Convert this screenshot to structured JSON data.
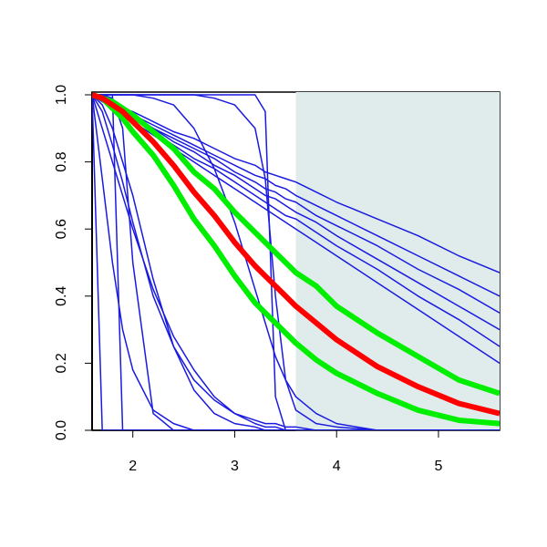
{
  "chart_data": {
    "type": "line",
    "x": [
      1.6,
      1.7,
      1.8,
      1.9,
      2.0,
      2.2,
      2.4,
      2.6,
      2.8,
      3.0,
      3.2,
      3.3,
      3.4,
      3.5,
      3.6,
      3.8,
      4.0,
      4.4,
      4.8,
      5.2,
      5.6
    ],
    "xlim": [
      1.6,
      5.6
    ],
    "ylim": [
      0,
      1
    ],
    "xticks": [
      2,
      3,
      4,
      5
    ],
    "yticks": [
      {
        "value": 0,
        "label": "0.0"
      },
      {
        "value": 0.2,
        "label": "0.2"
      },
      {
        "value": 0.4,
        "label": "0.4"
      },
      {
        "value": 0.6,
        "label": "0.6"
      },
      {
        "value": 0.8,
        "label": "0.8"
      },
      {
        "value": 1,
        "label": "1.0"
      }
    ],
    "shade": {
      "xlim": [
        3.6,
        5.6
      ],
      "color": "#e0eceb"
    },
    "series": [
      {
        "color": "#1a1ae0",
        "values": [
          1,
          0.99,
          0.97,
          0.96,
          0.95,
          0.92,
          0.89,
          0.87,
          0.84,
          0.81,
          0.79,
          0.77,
          0.76,
          0.75,
          0.74,
          0.71,
          0.68,
          0.63,
          0.58,
          0.52,
          0.47
        ]
      },
      {
        "color": "#1a1ae0",
        "values": [
          1,
          0.99,
          0.97,
          0.96,
          0.94,
          0.91,
          0.88,
          0.85,
          0.82,
          0.79,
          0.76,
          0.75,
          0.73,
          0.72,
          0.7,
          0.67,
          0.64,
          0.58,
          0.52,
          0.46,
          0.4
        ]
      },
      {
        "color": "#1a1ae0",
        "values": [
          1,
          0.98,
          0.97,
          0.95,
          0.94,
          0.9,
          0.87,
          0.84,
          0.81,
          0.77,
          0.74,
          0.72,
          0.71,
          0.69,
          0.68,
          0.64,
          0.61,
          0.55,
          0.48,
          0.42,
          0.35
        ]
      },
      {
        "color": "#1a1ae0",
        "values": [
          1,
          0.98,
          0.97,
          0.95,
          0.93,
          0.9,
          0.86,
          0.83,
          0.79,
          0.76,
          0.72,
          0.7,
          0.69,
          0.67,
          0.65,
          0.62,
          0.58,
          0.51,
          0.44,
          0.37,
          0.3
        ]
      },
      {
        "color": "#1a1ae0",
        "values": [
          1,
          0.98,
          0.96,
          0.94,
          0.93,
          0.89,
          0.85,
          0.81,
          0.78,
          0.74,
          0.7,
          0.68,
          0.66,
          0.64,
          0.63,
          0.59,
          0.55,
          0.48,
          0.4,
          0.33,
          0.25
        ]
      },
      {
        "color": "#1a1ae0",
        "values": [
          1,
          0.98,
          0.96,
          0.94,
          0.92,
          0.88,
          0.84,
          0.8,
          0.76,
          0.72,
          0.68,
          0.66,
          0.64,
          0.62,
          0.6,
          0.56,
          0.52,
          0.44,
          0.36,
          0.28,
          0.2
        ]
      },
      {
        "color": "#1a1ae0",
        "values": [
          1,
          1,
          1,
          1,
          1,
          1,
          1,
          1,
          1,
          1,
          1,
          0.95,
          0.1,
          0,
          0,
          0,
          0,
          0,
          0,
          0,
          0
        ]
      },
      {
        "color": "#1a1ae0",
        "values": [
          1,
          1,
          1,
          1,
          1,
          1,
          1,
          1,
          0.99,
          0.97,
          0.9,
          0.75,
          0.4,
          0.15,
          0.06,
          0.02,
          0.01,
          0,
          0,
          0,
          0
        ]
      },
      {
        "color": "#1a1ae0",
        "values": [
          1,
          1,
          1,
          1,
          1,
          0.99,
          0.97,
          0.9,
          0.78,
          0.62,
          0.42,
          0.32,
          0.22,
          0.15,
          0.1,
          0.05,
          0.02,
          0,
          0,
          0,
          0
        ]
      },
      {
        "color": "#1a1ae0",
        "values": [
          1,
          1,
          1,
          0,
          0,
          0,
          0,
          0,
          0,
          0,
          0,
          0,
          0,
          0,
          0,
          0,
          0,
          0,
          0,
          0,
          0
        ]
      },
      {
        "color": "#1a1ae0",
        "values": [
          1,
          0,
          0,
          0,
          0,
          0,
          0,
          0,
          0,
          0,
          0,
          0,
          0,
          0,
          0,
          0,
          0,
          0,
          0,
          0,
          0
        ]
      },
      {
        "color": "#1a1ae0",
        "values": [
          1,
          0.75,
          0.5,
          0.3,
          0.18,
          0.06,
          0.02,
          0,
          0,
          0,
          0,
          0,
          0,
          0,
          0,
          0,
          0,
          0,
          0,
          0,
          0
        ]
      },
      {
        "color": "#1a1ae0",
        "values": [
          1,
          0.9,
          0.8,
          0.7,
          0.6,
          0.42,
          0.28,
          0.18,
          0.1,
          0.05,
          0.02,
          0.01,
          0.01,
          0,
          0,
          0,
          0,
          0,
          0,
          0,
          0
        ]
      },
      {
        "color": "#1a1ae0",
        "values": [
          1,
          0.97,
          0.9,
          0.8,
          0.7,
          0.45,
          0.25,
          0.12,
          0.05,
          0.02,
          0.01,
          0,
          0,
          0,
          0,
          0,
          0,
          0,
          0,
          0,
          0
        ]
      },
      {
        "color": "#1a1ae0",
        "values": [
          1,
          1,
          0.99,
          0.9,
          0.5,
          0.05,
          0,
          0,
          0,
          0,
          0,
          0,
          0,
          0,
          0,
          0,
          0,
          0,
          0,
          0,
          0
        ]
      },
      {
        "color": "#1a1ae0",
        "values": [
          1,
          0.95,
          0.85,
          0.74,
          0.62,
          0.4,
          0.25,
          0.15,
          0.09,
          0.05,
          0.03,
          0.02,
          0.02,
          0.01,
          0.01,
          0,
          0,
          0,
          0,
          0,
          0
        ]
      },
      {
        "color": "#00ee00",
        "values": [
          1,
          0.99,
          0.98,
          0.96,
          0.94,
          0.89,
          0.84,
          0.77,
          0.72,
          0.65,
          0.59,
          0.56,
          0.53,
          0.5,
          0.47,
          0.43,
          0.37,
          0.29,
          0.22,
          0.15,
          0.11
        ]
      },
      {
        "color": "#00ee00",
        "values": [
          1,
          0.99,
          0.96,
          0.93,
          0.89,
          0.82,
          0.73,
          0.63,
          0.55,
          0.46,
          0.38,
          0.35,
          0.32,
          0.29,
          0.26,
          0.21,
          0.17,
          0.11,
          0.06,
          0.03,
          0.02
        ]
      },
      {
        "color": "#ff0000",
        "values": [
          1,
          0.99,
          0.97,
          0.95,
          0.92,
          0.86,
          0.79,
          0.71,
          0.64,
          0.56,
          0.49,
          0.46,
          0.43,
          0.4,
          0.37,
          0.32,
          0.27,
          0.19,
          0.13,
          0.08,
          0.05
        ]
      }
    ]
  }
}
